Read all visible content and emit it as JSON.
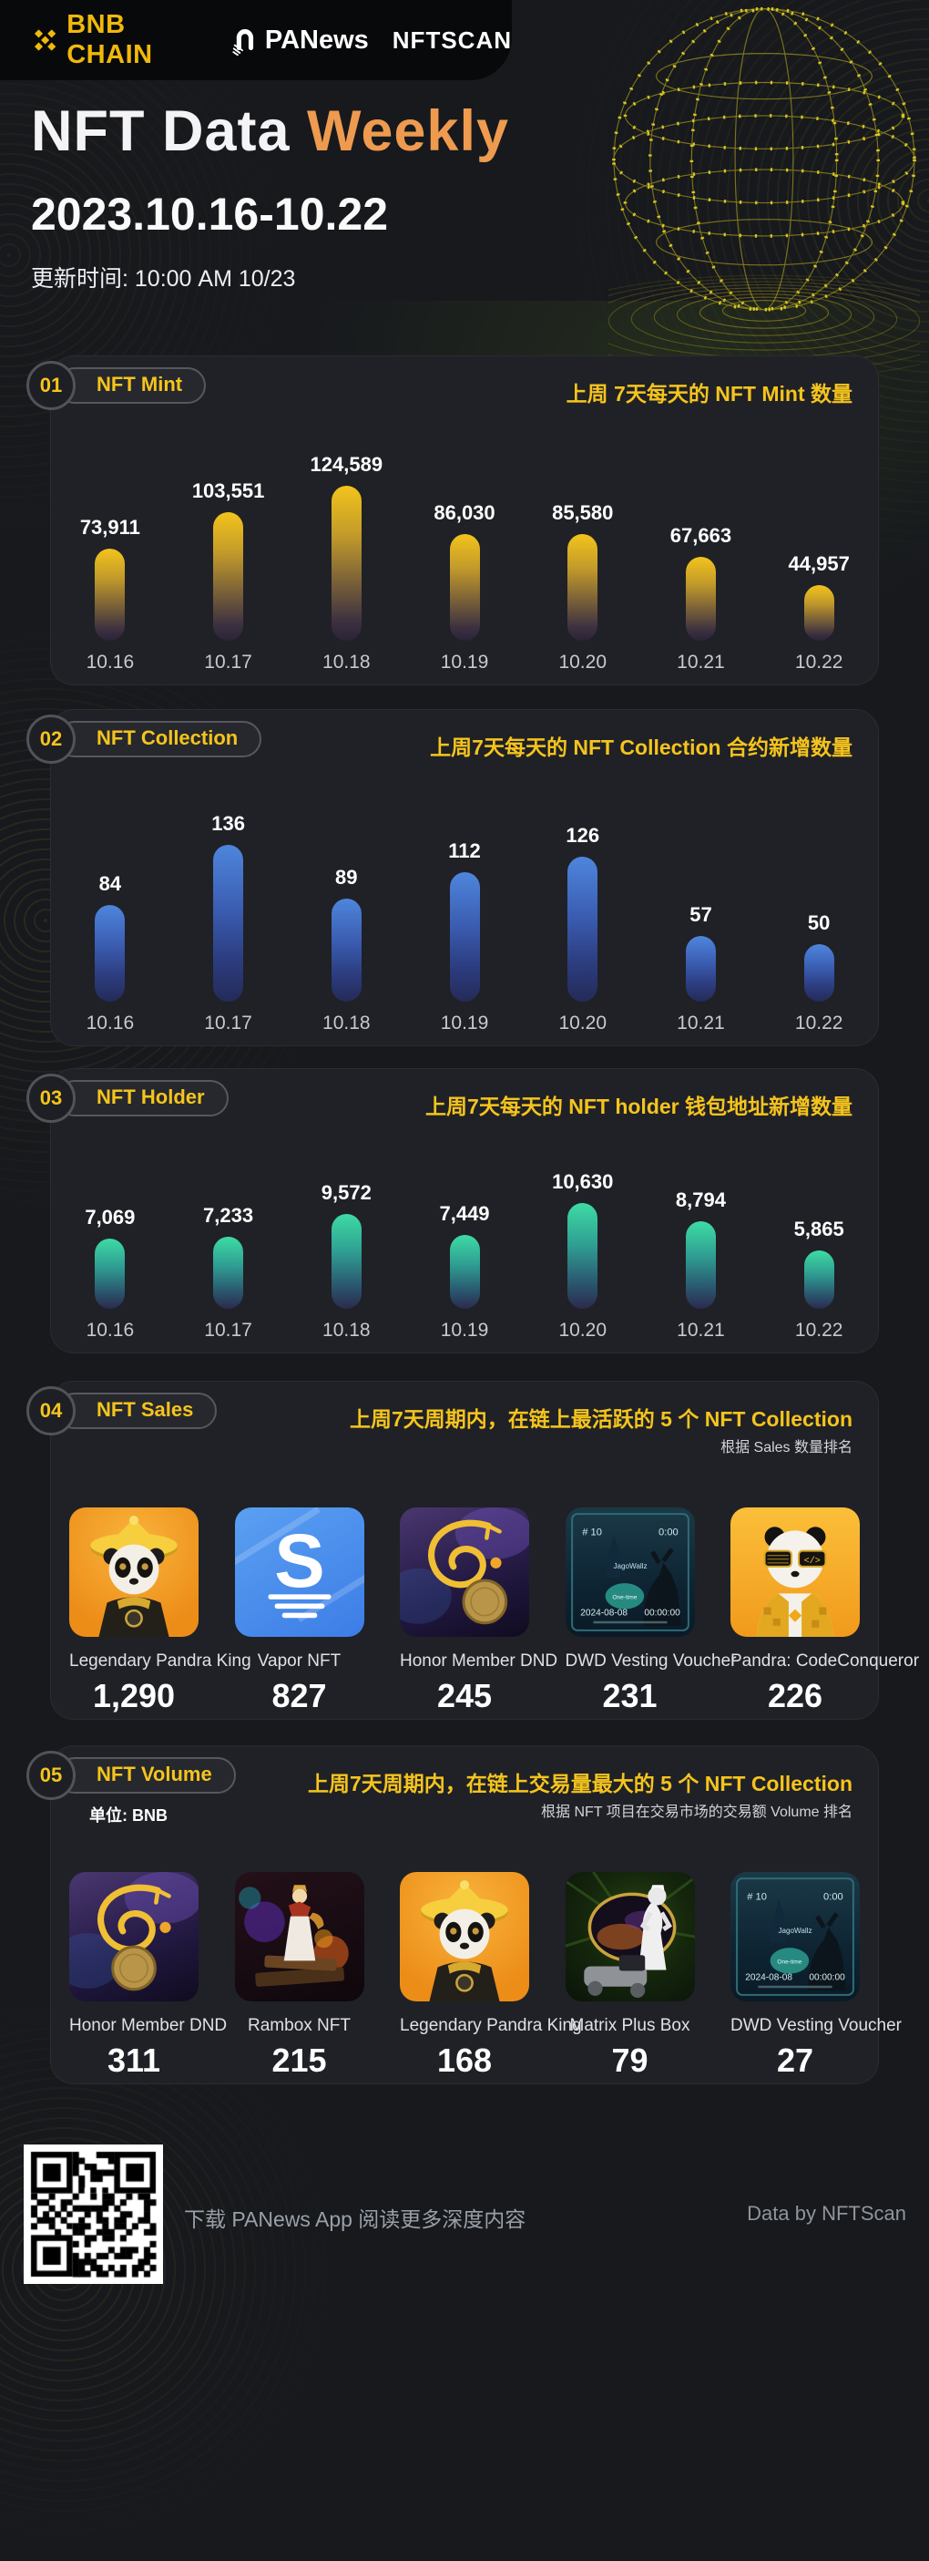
{
  "header": {
    "logo_bnb": "BNB CHAIN",
    "logo_panews": "PANews",
    "logo_nftscan": "NFTSCAN",
    "title_main": "NFT Data ",
    "title_accent": "Weekly",
    "date_range": "2023.10.16-10.22",
    "updated": "更新时间: 10:00 AM 10/23"
  },
  "colors": {
    "accent_yellow": "#f5c41d",
    "accent_orange": "#EE9B4F",
    "bnb_gold": "#F0B90B",
    "mint_bar_top": "#f3c41c",
    "mint_bar_bottom": "#2a2438",
    "collection_bar_top": "#4e86dd",
    "collection_bar_bottom": "#242b58",
    "holder_bar_top": "#3edba4",
    "holder_bar_bottom": "#2b2a4e"
  },
  "sections": {
    "mint": {
      "num": "01",
      "label": "NFT Mint",
      "caption": "上周 7天每天的 NFT Mint 数量"
    },
    "collection": {
      "num": "02",
      "label": "NFT Collection",
      "caption": "上周7天每天的 NFT Collection 合约新增数量"
    },
    "holder": {
      "num": "03",
      "label": "NFT Holder",
      "caption": "上周7天每天的 NFT holder 钱包地址新增数量"
    },
    "sales": {
      "num": "04",
      "label": "NFT Sales",
      "caption": "上周7天周期内，在链上最活跃的 5 个 NFT Collection",
      "subcaption": "根据 Sales 数量排名"
    },
    "volume": {
      "num": "05",
      "label": "NFT Volume",
      "caption": "上周7天周期内，在链上交易量最大的 5 个 NFT Collection",
      "subcaption": "根据 NFT 项目在交易市场的交易额 Volume 排名",
      "unit": "单位: BNB"
    }
  },
  "chart_data": [
    {
      "type": "bar",
      "id": "mint",
      "title": "NFT Mint",
      "categories": [
        "10.16",
        "10.17",
        "10.18",
        "10.19",
        "10.20",
        "10.21",
        "10.22"
      ],
      "values": [
        73911,
        103551,
        124589,
        86030,
        85580,
        67663,
        44957
      ],
      "value_labels": [
        "73,911",
        "103,551",
        "124,589",
        "86,030",
        "85,580",
        "67,663",
        "44,957"
      ],
      "xlabel": "",
      "ylabel": "",
      "grid": false,
      "legend": "none"
    },
    {
      "type": "bar",
      "id": "collection",
      "title": "NFT Collection",
      "categories": [
        "10.16",
        "10.17",
        "10.18",
        "10.19",
        "10.20",
        "10.21",
        "10.22"
      ],
      "values": [
        84,
        136,
        89,
        112,
        126,
        57,
        50
      ],
      "value_labels": [
        "84",
        "136",
        "89",
        "112",
        "126",
        "57",
        "50"
      ],
      "xlabel": "",
      "ylabel": "",
      "grid": false,
      "legend": "none"
    },
    {
      "type": "bar",
      "id": "holder",
      "title": "NFT Holder",
      "categories": [
        "10.16",
        "10.17",
        "10.18",
        "10.19",
        "10.20",
        "10.21",
        "10.22"
      ],
      "values": [
        7069,
        7233,
        9572,
        7449,
        10630,
        8794,
        5865
      ],
      "value_labels": [
        "7,069",
        "7,233",
        "9,572",
        "7,449",
        "10,630",
        "8,794",
        "5,865"
      ],
      "xlabel": "",
      "ylabel": "",
      "grid": false,
      "legend": "none"
    }
  ],
  "sales_items": [
    {
      "name": "Legendary Pandra King",
      "value": "1,290"
    },
    {
      "name": "Vapor NFT",
      "value": "827"
    },
    {
      "name": "Honor Member DND",
      "value": "245"
    },
    {
      "name": "DWD Vesting Voucher",
      "value": "231"
    },
    {
      "name": "Pandra: CodeConqueror",
      "value": "226"
    }
  ],
  "volume_items": [
    {
      "name": "Honor Member DND",
      "value": "311"
    },
    {
      "name": "Rambox NFT",
      "value": "215"
    },
    {
      "name": "Legendary Pandra King",
      "value": "168"
    },
    {
      "name": "Matrix Plus Box",
      "value": "79"
    },
    {
      "name": "DWD Vesting Voucher",
      "value": "27"
    }
  ],
  "dwd_card": {
    "top_left": "# 10",
    "top_right": "0:00",
    "logo": "JagoWallz",
    "button": "One-time",
    "date": "2024-08-08",
    "time": "00:00:00"
  },
  "footer": {
    "note": "下载 PANews App 阅读更多深度内容",
    "credit": "Data by NFTScan"
  }
}
